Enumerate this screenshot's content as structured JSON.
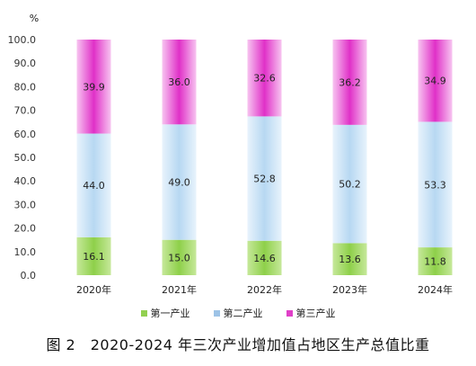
{
  "chart_data": {
    "type": "bar",
    "stacked": true,
    "y_unit": "%",
    "ylim": [
      0,
      100
    ],
    "yticks": [
      "0.0",
      "10.0",
      "20.0",
      "30.0",
      "40.0",
      "50.0",
      "60.0",
      "70.0",
      "80.0",
      "90.0",
      "100.0"
    ],
    "categories": [
      "2020年",
      "2021年",
      "2022年",
      "2023年",
      "2024年"
    ],
    "series": [
      {
        "name": "第一产业",
        "color": "#92d050",
        "values": [
          16.1,
          15.0,
          14.6,
          13.6,
          11.8
        ],
        "labels": [
          "16.1",
          "15.0",
          "14.6",
          "13.6",
          "11.8"
        ]
      },
      {
        "name": "第二产业",
        "color": "#9dc3e6",
        "values": [
          44.0,
          49.0,
          52.8,
          50.2,
          53.3
        ],
        "labels": [
          "44.0",
          "49.0",
          "52.8",
          "50.2",
          "53.3"
        ]
      },
      {
        "name": "第三产业",
        "color": "#e040c8",
        "values": [
          39.9,
          36.0,
          32.6,
          36.2,
          34.9
        ],
        "labels": [
          "39.9",
          "36.0",
          "32.6",
          "36.2",
          "34.9"
        ]
      }
    ],
    "legend_position": "bottom",
    "grid": false
  },
  "caption": "图 2　2020-2024 年三次产业增加值占地区生产总值比重"
}
